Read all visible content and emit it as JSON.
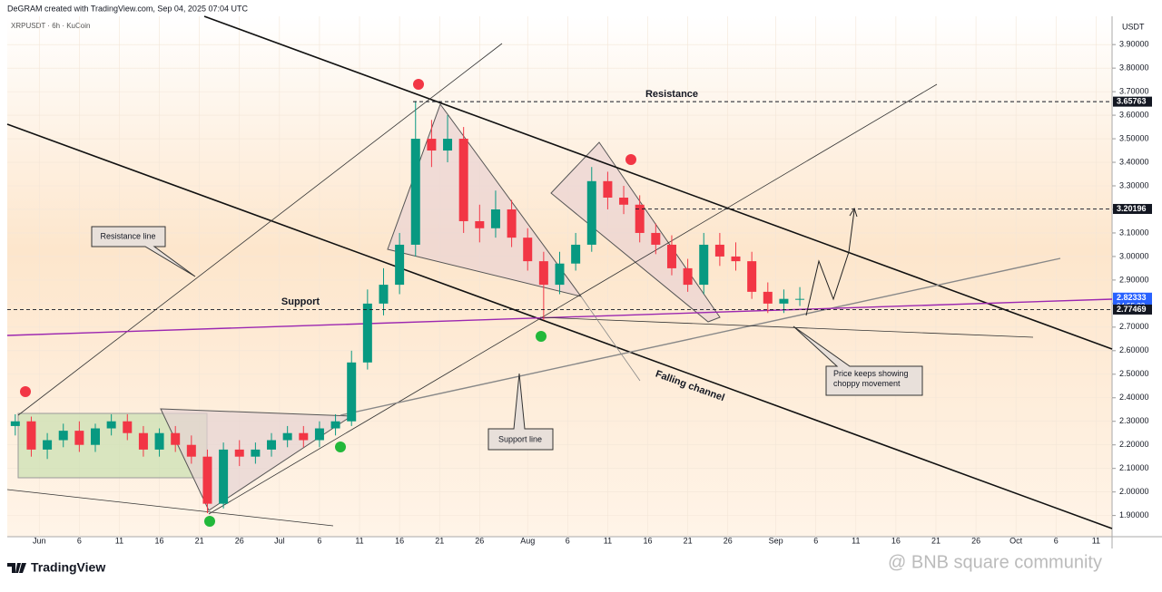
{
  "header": "DeGRAM created with TradingView.com, Sep 04, 2025 07:04 UTC",
  "footer": {
    "brand": "TradingView",
    "watermark": "@ BNB square community"
  },
  "annotations": {
    "resistance": "Resistance",
    "support": "Support",
    "resistance_line": "Resistance line",
    "support_line": "Support line",
    "falling_channel": "Falling channel",
    "choppy": "Price keeps showing choppy movement"
  },
  "chart_data": {
    "type": "candlestick",
    "title": "XRPUSDT · 6h · KuCoin",
    "y_unit": "USDT",
    "up_color": "#089981",
    "down_color": "#f23645",
    "x": [
      "May 29",
      "May 31",
      "Jun 2",
      "Jun 4",
      "Jun 6",
      "Jun 8",
      "Jun 10",
      "Jun 12",
      "Jun 14",
      "Jun 16",
      "Jun 18",
      "Jun 20",
      "Jun 22",
      "Jun 24",
      "Jun 26",
      "Jun 28",
      "Jun 30",
      "Jul 2",
      "Jul 4",
      "Jul 6",
      "Jul 8",
      "Jul 10",
      "Jul 12",
      "Jul 14",
      "Jul 16",
      "Jul 18",
      "Jul 20",
      "Jul 22",
      "Jul 24",
      "Jul 26",
      "Jul 28",
      "Jul 30",
      "Aug 1",
      "Aug 3",
      "Aug 5",
      "Aug 7",
      "Aug 9",
      "Aug 11",
      "Aug 13",
      "Aug 15",
      "Aug 17",
      "Aug 19",
      "Aug 21",
      "Aug 23",
      "Aug 25",
      "Aug 27",
      "Aug 29",
      "Aug 31",
      "Sep 2",
      "Sep 4"
    ],
    "open": [
      2.28,
      2.3,
      2.18,
      2.22,
      2.26,
      2.2,
      2.27,
      2.3,
      2.25,
      2.18,
      2.25,
      2.2,
      2.15,
      1.95,
      2.18,
      2.15,
      2.18,
      2.22,
      2.25,
      2.22,
      2.27,
      2.3,
      2.55,
      2.8,
      2.88,
      3.05,
      3.5,
      3.45,
      3.5,
      3.15,
      3.12,
      3.2,
      3.08,
      2.98,
      2.88,
      2.97,
      3.05,
      3.32,
      3.25,
      3.22,
      3.1,
      3.05,
      2.95,
      2.88,
      3.05,
      3.0,
      2.98,
      2.85,
      2.8,
      2.82
    ],
    "high": [
      2.33,
      2.32,
      2.25,
      2.29,
      2.3,
      2.29,
      2.33,
      2.33,
      2.28,
      2.27,
      2.28,
      2.24,
      2.18,
      2.21,
      2.22,
      2.21,
      2.25,
      2.28,
      2.28,
      2.3,
      2.33,
      2.6,
      2.86,
      2.95,
      3.1,
      3.66,
      3.58,
      3.6,
      3.55,
      3.22,
      3.28,
      3.24,
      3.12,
      3.02,
      3.02,
      3.1,
      3.38,
      3.36,
      3.3,
      3.26,
      3.14,
      3.09,
      2.99,
      3.1,
      3.1,
      3.06,
      3.02,
      2.89,
      2.86,
      2.87
    ],
    "low": [
      2.24,
      2.15,
      2.14,
      2.19,
      2.17,
      2.17,
      2.24,
      2.22,
      2.15,
      2.15,
      2.17,
      2.12,
      1.91,
      1.93,
      2.11,
      2.12,
      2.15,
      2.19,
      2.19,
      2.19,
      2.24,
      2.28,
      2.52,
      2.75,
      2.84,
      3.0,
      3.38,
      3.4,
      3.1,
      3.06,
      3.08,
      3.04,
      2.94,
      2.73,
      2.84,
      2.94,
      3.02,
      3.2,
      3.18,
      3.06,
      3.01,
      2.92,
      2.85,
      2.84,
      2.96,
      2.94,
      2.82,
      2.76,
      2.76,
      2.79
    ],
    "close": [
      2.3,
      2.18,
      2.22,
      2.26,
      2.2,
      2.27,
      2.3,
      2.25,
      2.18,
      2.25,
      2.2,
      2.15,
      1.95,
      2.18,
      2.15,
      2.18,
      2.22,
      2.25,
      2.22,
      2.27,
      2.3,
      2.55,
      2.8,
      2.88,
      3.05,
      3.5,
      3.45,
      3.5,
      3.15,
      3.12,
      3.2,
      3.08,
      2.98,
      2.88,
      2.97,
      3.05,
      3.32,
      3.25,
      3.22,
      3.1,
      3.05,
      2.95,
      2.88,
      3.05,
      3.0,
      2.98,
      2.85,
      2.8,
      2.82,
      2.82
    ],
    "xlim": [
      "May 28",
      "Oct 13"
    ],
    "xticks": [
      {
        "value": "Jun 1",
        "label": "Jun"
      },
      {
        "value": "Jun 6",
        "label": "6"
      },
      {
        "value": "Jun 11",
        "label": "11"
      },
      {
        "value": "Jun 16",
        "label": "16"
      },
      {
        "value": "Jun 21",
        "label": "21"
      },
      {
        "value": "Jun 26",
        "label": "26"
      },
      {
        "value": "Jul 1",
        "label": "Jul"
      },
      {
        "value": "Jul 6",
        "label": "6"
      },
      {
        "value": "Jul 11",
        "label": "11"
      },
      {
        "value": "Jul 16",
        "label": "16"
      },
      {
        "value": "Jul 21",
        "label": "21"
      },
      {
        "value": "Jul 26",
        "label": "26"
      },
      {
        "value": "Aug 1",
        "label": "Aug"
      },
      {
        "value": "Aug 6",
        "label": "6"
      },
      {
        "value": "Aug 11",
        "label": "11"
      },
      {
        "value": "Aug 16",
        "label": "16"
      },
      {
        "value": "Aug 21",
        "label": "21"
      },
      {
        "value": "Aug 26",
        "label": "26"
      },
      {
        "value": "Sep 1",
        "label": "Sep"
      },
      {
        "value": "Sep 6",
        "label": "6"
      },
      {
        "value": "Sep 11",
        "label": "11"
      },
      {
        "value": "Sep 16",
        "label": "16"
      },
      {
        "value": "Sep 21",
        "label": "21"
      },
      {
        "value": "Sep 26",
        "label": "26"
      },
      {
        "value": "Oct 1",
        "label": "Oct"
      },
      {
        "value": "Oct 6",
        "label": "6"
      },
      {
        "value": "Oct 11",
        "label": "11"
      }
    ],
    "ylim": [
      1.81,
      4.02
    ],
    "yticks": [
      {
        "value": 1.9,
        "label": "1.90000"
      },
      {
        "value": 2.0,
        "label": "2.00000"
      },
      {
        "value": 2.1,
        "label": "2.10000"
      },
      {
        "value": 2.2,
        "label": "2.20000"
      },
      {
        "value": 2.3,
        "label": "2.30000"
      },
      {
        "value": 2.4,
        "label": "2.40000"
      },
      {
        "value": 2.5,
        "label": "2.50000"
      },
      {
        "value": 2.6,
        "label": "2.60000"
      },
      {
        "value": 2.7,
        "label": "2.70000"
      },
      {
        "value": 2.8,
        "label": "2.80000"
      },
      {
        "value": 2.9,
        "label": "2.90000"
      },
      {
        "value": 3.0,
        "label": "3.00000"
      },
      {
        "value": 3.1,
        "label": "3.10000"
      },
      {
        "value": 3.2,
        "label": "3.20000"
      },
      {
        "value": 3.3,
        "label": "3.30000"
      },
      {
        "value": 3.4,
        "label": "3.40000"
      },
      {
        "value": 3.5,
        "label": "3.50000"
      },
      {
        "value": 3.6,
        "label": "3.60000"
      },
      {
        "value": 3.7,
        "label": "3.70000"
      },
      {
        "value": 3.8,
        "label": "3.80000"
      },
      {
        "value": 3.9,
        "label": "3.90000"
      }
    ],
    "price_lines": [
      {
        "value": 3.65763,
        "color": "#131722",
        "dashed": true
      },
      {
        "value": 3.20196,
        "color": "#131722",
        "dashed": true
      },
      {
        "value": 2.82333,
        "color": "#2962ff",
        "dashed": false,
        "countdown": "04:55:23"
      },
      {
        "value": 2.77469,
        "color": "#131722",
        "dashed": true
      }
    ]
  }
}
